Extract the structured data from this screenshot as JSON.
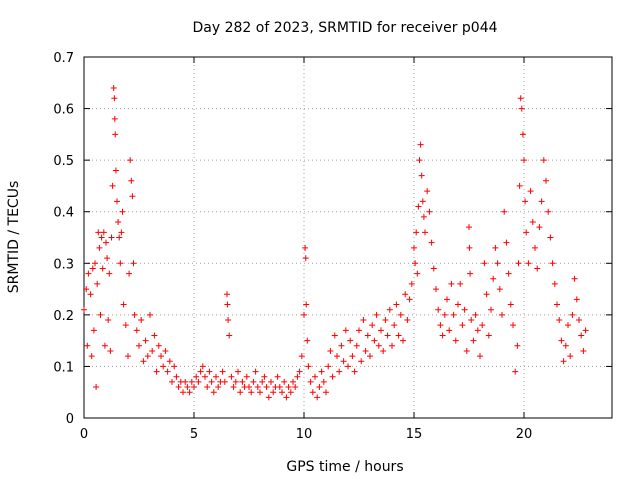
{
  "chart_data": {
    "type": "scatter",
    "title": "Day 282 of 2023, SRMTID for receiver p044",
    "xlabel": "GPS time / hours",
    "ylabel": "SRMTID / TECUs",
    "xlim": [
      0,
      24
    ],
    "ylim": [
      0,
      0.7
    ],
    "xticks": [
      0,
      5,
      10,
      15,
      20
    ],
    "xtick_labels": [
      "0",
      "5",
      "10",
      "15",
      "20"
    ],
    "yticks": [
      0,
      0.1,
      0.2,
      0.3,
      0.4,
      0.5,
      0.6,
      0.7
    ],
    "ytick_labels": [
      "0",
      "0.1",
      "0.2",
      "0.3",
      "0.4",
      "0.5",
      "0.6",
      "0.7"
    ],
    "grid": true,
    "marker": "+",
    "color": "#ff0000",
    "series": [
      {
        "name": "SRMTID",
        "points": [
          [
            0.0,
            0.21
          ],
          [
            0.1,
            0.25
          ],
          [
            0.15,
            0.14
          ],
          [
            0.2,
            0.28
          ],
          [
            0.3,
            0.24
          ],
          [
            0.35,
            0.12
          ],
          [
            0.4,
            0.29
          ],
          [
            0.45,
            0.17
          ],
          [
            0.5,
            0.3
          ],
          [
            0.55,
            0.06
          ],
          [
            0.6,
            0.26
          ],
          [
            0.65,
            0.36
          ],
          [
            0.7,
            0.33
          ],
          [
            0.75,
            0.2
          ],
          [
            0.8,
            0.35
          ],
          [
            0.85,
            0.29
          ],
          [
            0.9,
            0.36
          ],
          [
            0.95,
            0.14
          ],
          [
            1.0,
            0.34
          ],
          [
            1.05,
            0.31
          ],
          [
            1.1,
            0.19
          ],
          [
            1.15,
            0.28
          ],
          [
            1.2,
            0.13
          ],
          [
            1.25,
            0.35
          ],
          [
            1.3,
            0.45
          ],
          [
            1.35,
            0.64
          ],
          [
            1.38,
            0.62
          ],
          [
            1.4,
            0.58
          ],
          [
            1.42,
            0.55
          ],
          [
            1.45,
            0.48
          ],
          [
            1.5,
            0.42
          ],
          [
            1.55,
            0.38
          ],
          [
            1.6,
            0.35
          ],
          [
            1.65,
            0.3
          ],
          [
            1.7,
            0.36
          ],
          [
            1.75,
            0.4
          ],
          [
            1.8,
            0.22
          ],
          [
            1.9,
            0.18
          ],
          [
            2.0,
            0.12
          ],
          [
            2.05,
            0.28
          ],
          [
            2.1,
            0.5
          ],
          [
            2.15,
            0.46
          ],
          [
            2.2,
            0.43
          ],
          [
            2.25,
            0.3
          ],
          [
            2.3,
            0.2
          ],
          [
            2.4,
            0.17
          ],
          [
            2.5,
            0.14
          ],
          [
            2.6,
            0.19
          ],
          [
            2.7,
            0.11
          ],
          [
            2.8,
            0.15
          ],
          [
            2.9,
            0.12
          ],
          [
            3.0,
            0.2
          ],
          [
            3.1,
            0.13
          ],
          [
            3.2,
            0.16
          ],
          [
            3.3,
            0.09
          ],
          [
            3.4,
            0.14
          ],
          [
            3.5,
            0.12
          ],
          [
            3.6,
            0.1
          ],
          [
            3.7,
            0.13
          ],
          [
            3.8,
            0.09
          ],
          [
            3.9,
            0.11
          ],
          [
            4.0,
            0.07
          ],
          [
            4.1,
            0.1
          ],
          [
            4.2,
            0.08
          ],
          [
            4.3,
            0.06
          ],
          [
            4.4,
            0.07
          ],
          [
            4.5,
            0.05
          ],
          [
            4.6,
            0.07
          ],
          [
            4.7,
            0.06
          ],
          [
            4.8,
            0.05
          ],
          [
            4.9,
            0.07
          ],
          [
            5.0,
            0.06
          ],
          [
            5.1,
            0.08
          ],
          [
            5.2,
            0.07
          ],
          [
            5.3,
            0.09
          ],
          [
            5.4,
            0.1
          ],
          [
            5.5,
            0.08
          ],
          [
            5.6,
            0.06
          ],
          [
            5.7,
            0.09
          ],
          [
            5.8,
            0.07
          ],
          [
            5.9,
            0.05
          ],
          [
            6.0,
            0.08
          ],
          [
            6.1,
            0.06
          ],
          [
            6.2,
            0.07
          ],
          [
            6.3,
            0.09
          ],
          [
            6.4,
            0.07
          ],
          [
            6.5,
            0.24
          ],
          [
            6.52,
            0.22
          ],
          [
            6.55,
            0.19
          ],
          [
            6.6,
            0.16
          ],
          [
            6.7,
            0.08
          ],
          [
            6.8,
            0.06
          ],
          [
            6.9,
            0.07
          ],
          [
            7.0,
            0.09
          ],
          [
            7.1,
            0.05
          ],
          [
            7.2,
            0.07
          ],
          [
            7.3,
            0.06
          ],
          [
            7.4,
            0.08
          ],
          [
            7.5,
            0.06
          ],
          [
            7.6,
            0.05
          ],
          [
            7.7,
            0.07
          ],
          [
            7.8,
            0.09
          ],
          [
            7.9,
            0.06
          ],
          [
            8.0,
            0.05
          ],
          [
            8.1,
            0.07
          ],
          [
            8.2,
            0.08
          ],
          [
            8.3,
            0.06
          ],
          [
            8.4,
            0.04
          ],
          [
            8.5,
            0.07
          ],
          [
            8.6,
            0.05
          ],
          [
            8.7,
            0.06
          ],
          [
            8.8,
            0.08
          ],
          [
            8.9,
            0.06
          ],
          [
            9.0,
            0.05
          ],
          [
            9.1,
            0.07
          ],
          [
            9.2,
            0.04
          ],
          [
            9.3,
            0.06
          ],
          [
            9.4,
            0.05
          ],
          [
            9.5,
            0.07
          ],
          [
            9.6,
            0.06
          ],
          [
            9.7,
            0.08
          ],
          [
            9.8,
            0.09
          ],
          [
            9.9,
            0.12
          ],
          [
            10.0,
            0.2
          ],
          [
            10.05,
            0.33
          ],
          [
            10.08,
            0.31
          ],
          [
            10.1,
            0.22
          ],
          [
            10.15,
            0.15
          ],
          [
            10.2,
            0.1
          ],
          [
            10.3,
            0.07
          ],
          [
            10.4,
            0.05
          ],
          [
            10.5,
            0.08
          ],
          [
            10.6,
            0.04
          ],
          [
            10.7,
            0.06
          ],
          [
            10.8,
            0.09
          ],
          [
            10.9,
            0.07
          ],
          [
            11.0,
            0.05
          ],
          [
            11.1,
            0.1
          ],
          [
            11.2,
            0.13
          ],
          [
            11.3,
            0.08
          ],
          [
            11.4,
            0.16
          ],
          [
            11.5,
            0.12
          ],
          [
            11.6,
            0.09
          ],
          [
            11.7,
            0.14
          ],
          [
            11.8,
            0.11
          ],
          [
            11.9,
            0.17
          ],
          [
            12.0,
            0.1
          ],
          [
            12.1,
            0.15
          ],
          [
            12.2,
            0.12
          ],
          [
            12.3,
            0.09
          ],
          [
            12.4,
            0.14
          ],
          [
            12.5,
            0.17
          ],
          [
            12.6,
            0.11
          ],
          [
            12.7,
            0.19
          ],
          [
            12.8,
            0.13
          ],
          [
            12.9,
            0.16
          ],
          [
            13.0,
            0.12
          ],
          [
            13.1,
            0.18
          ],
          [
            13.2,
            0.15
          ],
          [
            13.3,
            0.2
          ],
          [
            13.4,
            0.14
          ],
          [
            13.5,
            0.17
          ],
          [
            13.6,
            0.13
          ],
          [
            13.7,
            0.19
          ],
          [
            13.8,
            0.16
          ],
          [
            13.9,
            0.21
          ],
          [
            14.0,
            0.14
          ],
          [
            14.1,
            0.18
          ],
          [
            14.2,
            0.22
          ],
          [
            14.3,
            0.16
          ],
          [
            14.4,
            0.2
          ],
          [
            14.5,
            0.15
          ],
          [
            14.6,
            0.24
          ],
          [
            14.7,
            0.19
          ],
          [
            14.8,
            0.23
          ],
          [
            14.9,
            0.26
          ],
          [
            15.0,
            0.33
          ],
          [
            15.05,
            0.3
          ],
          [
            15.1,
            0.36
          ],
          [
            15.15,
            0.28
          ],
          [
            15.2,
            0.41
          ],
          [
            15.25,
            0.5
          ],
          [
            15.3,
            0.53
          ],
          [
            15.35,
            0.47
          ],
          [
            15.4,
            0.42
          ],
          [
            15.45,
            0.39
          ],
          [
            15.5,
            0.36
          ],
          [
            15.6,
            0.44
          ],
          [
            15.7,
            0.4
          ],
          [
            15.8,
            0.34
          ],
          [
            15.9,
            0.29
          ],
          [
            16.0,
            0.25
          ],
          [
            16.1,
            0.21
          ],
          [
            16.2,
            0.18
          ],
          [
            16.3,
            0.16
          ],
          [
            16.4,
            0.2
          ],
          [
            16.5,
            0.23
          ],
          [
            16.6,
            0.17
          ],
          [
            16.7,
            0.26
          ],
          [
            16.8,
            0.2
          ],
          [
            16.9,
            0.15
          ],
          [
            17.0,
            0.22
          ],
          [
            17.1,
            0.26
          ],
          [
            17.2,
            0.18
          ],
          [
            17.3,
            0.21
          ],
          [
            17.4,
            0.13
          ],
          [
            17.5,
            0.37
          ],
          [
            17.52,
            0.33
          ],
          [
            17.55,
            0.28
          ],
          [
            17.6,
            0.19
          ],
          [
            17.7,
            0.15
          ],
          [
            17.8,
            0.2
          ],
          [
            17.9,
            0.17
          ],
          [
            18.0,
            0.12
          ],
          [
            18.1,
            0.18
          ],
          [
            18.2,
            0.3
          ],
          [
            18.3,
            0.24
          ],
          [
            18.4,
            0.16
          ],
          [
            18.5,
            0.21
          ],
          [
            18.6,
            0.27
          ],
          [
            18.7,
            0.33
          ],
          [
            18.8,
            0.3
          ],
          [
            18.9,
            0.25
          ],
          [
            19.0,
            0.2
          ],
          [
            19.1,
            0.4
          ],
          [
            19.2,
            0.34
          ],
          [
            19.3,
            0.28
          ],
          [
            19.4,
            0.22
          ],
          [
            19.5,
            0.18
          ],
          [
            19.6,
            0.09
          ],
          [
            19.7,
            0.14
          ],
          [
            19.75,
            0.3
          ],
          [
            19.8,
            0.45
          ],
          [
            19.85,
            0.62
          ],
          [
            19.9,
            0.6
          ],
          [
            19.95,
            0.55
          ],
          [
            20.0,
            0.5
          ],
          [
            20.05,
            0.42
          ],
          [
            20.1,
            0.36
          ],
          [
            20.2,
            0.3
          ],
          [
            20.3,
            0.44
          ],
          [
            20.4,
            0.38
          ],
          [
            20.5,
            0.33
          ],
          [
            20.6,
            0.29
          ],
          [
            20.7,
            0.37
          ],
          [
            20.8,
            0.42
          ],
          [
            20.9,
            0.5
          ],
          [
            21.0,
            0.46
          ],
          [
            21.1,
            0.4
          ],
          [
            21.2,
            0.35
          ],
          [
            21.3,
            0.3
          ],
          [
            21.4,
            0.26
          ],
          [
            21.5,
            0.22
          ],
          [
            21.6,
            0.19
          ],
          [
            21.7,
            0.15
          ],
          [
            21.8,
            0.11
          ],
          [
            21.9,
            0.14
          ],
          [
            22.0,
            0.18
          ],
          [
            22.1,
            0.12
          ],
          [
            22.2,
            0.2
          ],
          [
            22.3,
            0.27
          ],
          [
            22.4,
            0.23
          ],
          [
            22.5,
            0.19
          ],
          [
            22.6,
            0.16
          ],
          [
            22.7,
            0.13
          ],
          [
            22.8,
            0.17
          ]
        ]
      }
    ]
  }
}
